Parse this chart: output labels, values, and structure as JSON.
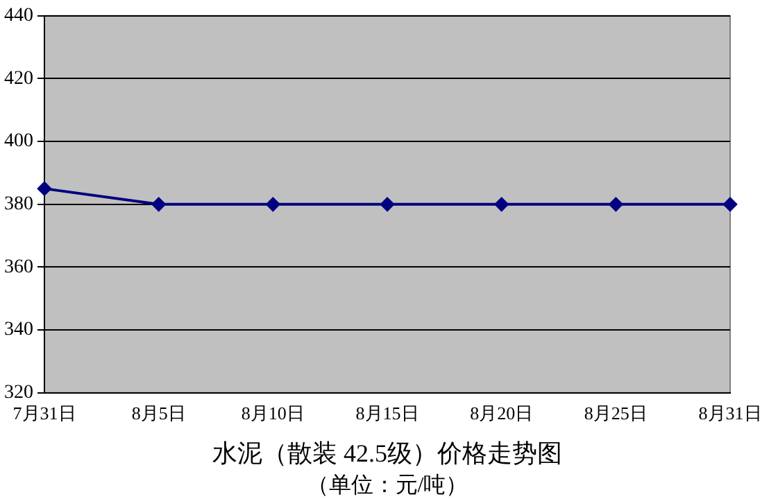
{
  "chart_data": {
    "type": "line",
    "title": "水泥（散装 42.5级）价格走势图",
    "subtitle": "（单位：元/吨）",
    "categories": [
      "7月31日",
      "8月5日",
      "8月10日",
      "8月15日",
      "8月20日",
      "8月25日",
      "8月31日"
    ],
    "series": [
      {
        "color": "#000080",
        "values": [
          385,
          380,
          380,
          380,
          380,
          380,
          380
        ]
      }
    ],
    "ylim": [
      320,
      440
    ],
    "yticks": [
      320,
      340,
      360,
      380,
      400,
      420,
      440
    ],
    "grid": "y",
    "legend": false,
    "marker": "diamond",
    "line_style": "solid"
  }
}
